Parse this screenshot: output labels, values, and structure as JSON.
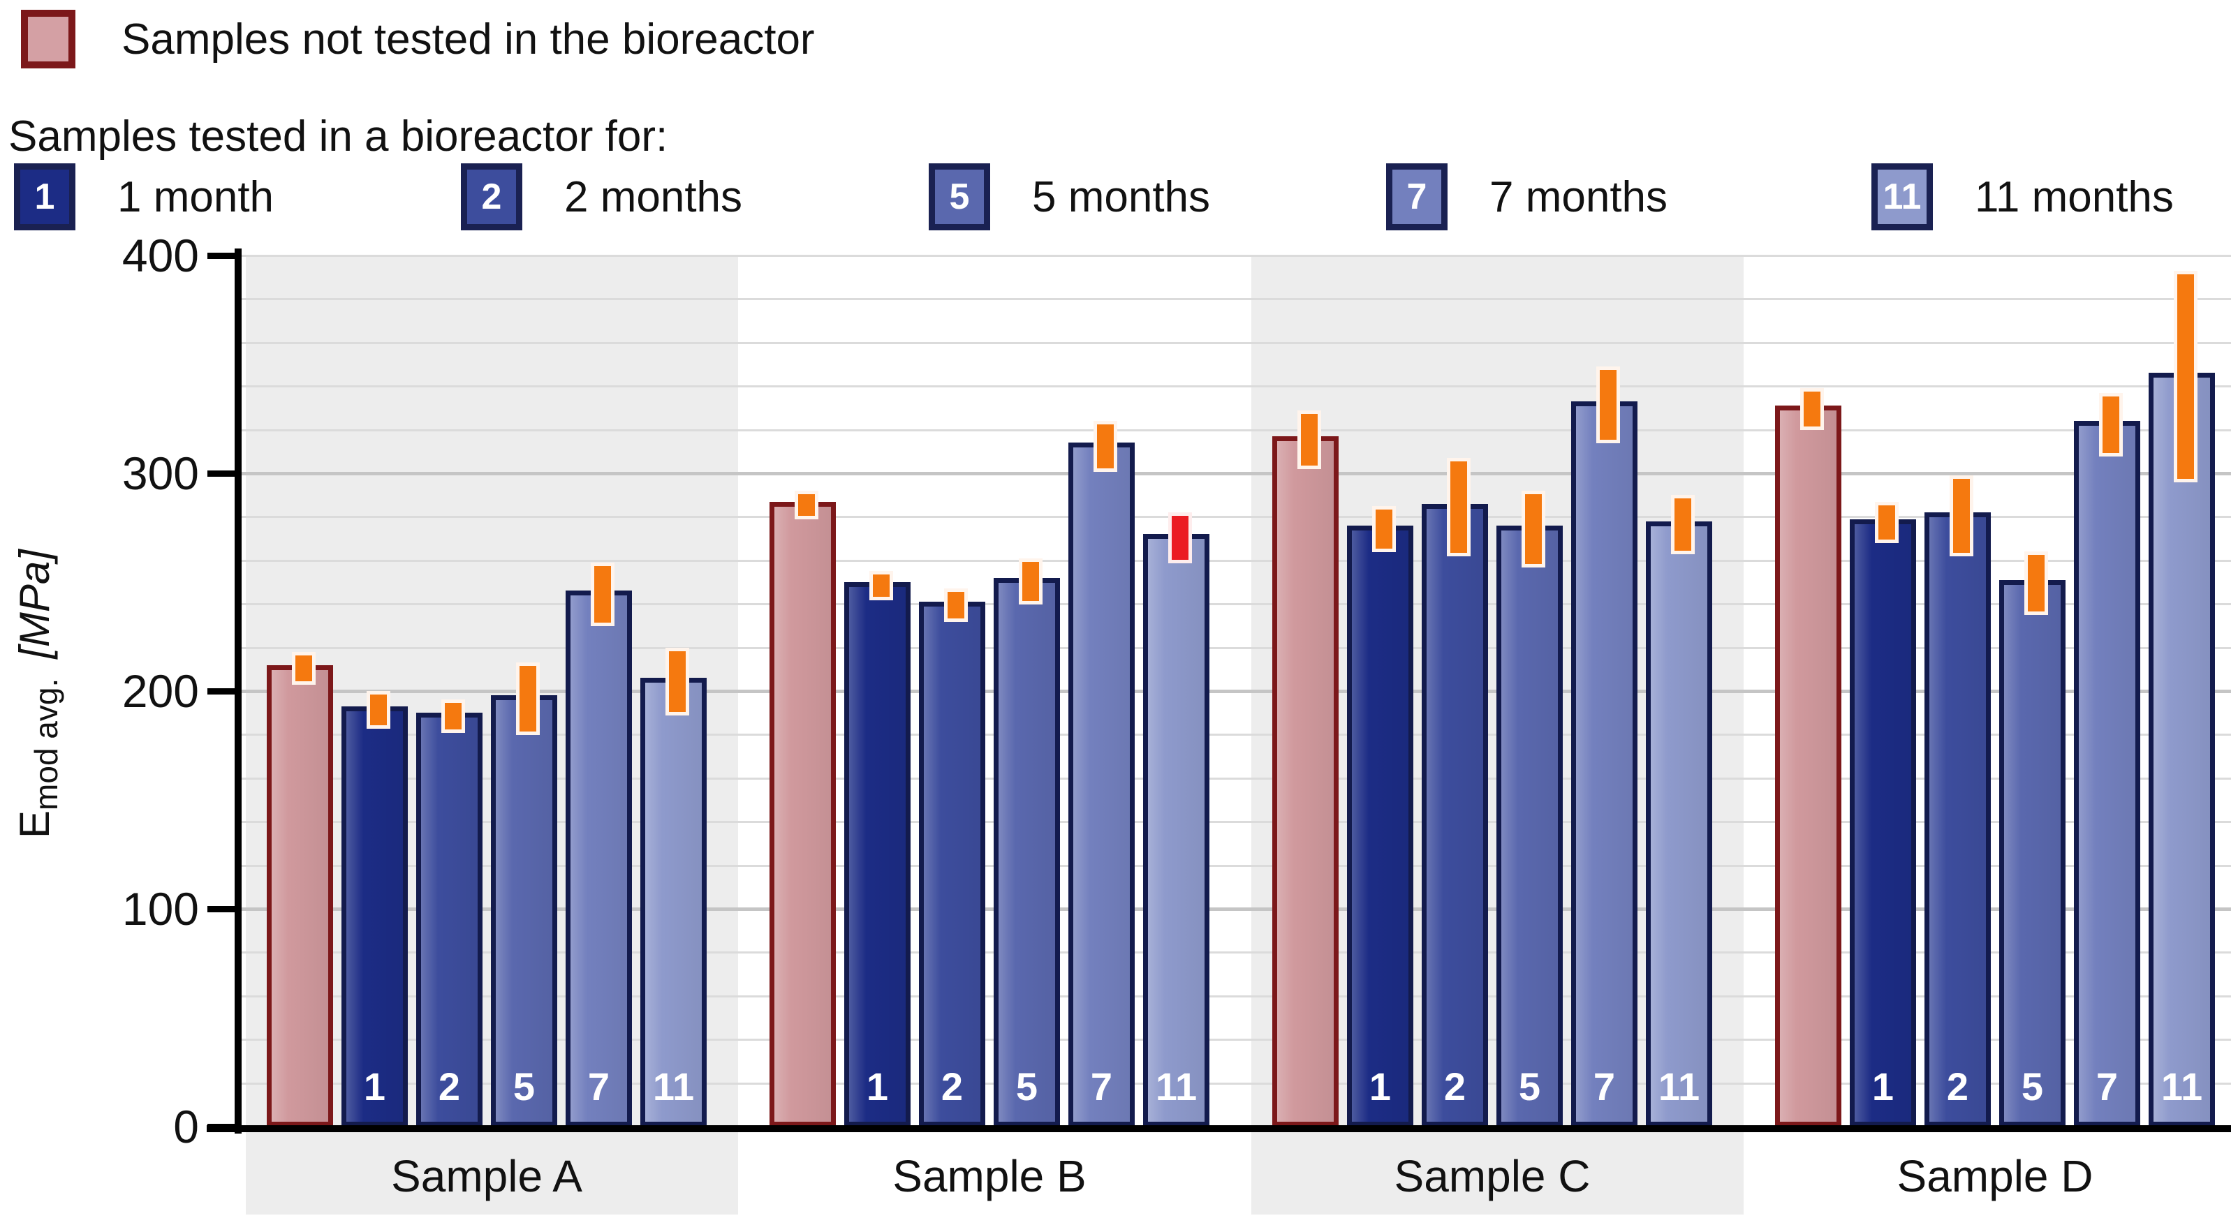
{
  "legend": {
    "not_tested_label": "Samples not tested in the bioreactor",
    "tested_heading": "Samples tested in a bioreactor for:",
    "not_tested_color": "#D4A0A4",
    "not_tested_border": "#7C181A",
    "items": [
      {
        "key": "1",
        "label": "1 month",
        "color": "#1C2C85"
      },
      {
        "key": "2",
        "label": "2 months",
        "color": "#3D4D9D"
      },
      {
        "key": "5",
        "label": "5 months",
        "color": "#5A68AE"
      },
      {
        "key": "7",
        "label": "7 months",
        "color": "#7380BE"
      },
      {
        "key": "11",
        "label": "11 months",
        "color": "#8E9ACC"
      }
    ]
  },
  "axis": {
    "ylabel_main": "E",
    "ylabel_sub": "mod avg.",
    "ylabel_unit": "[MPa]"
  },
  "chart_data": {
    "type": "bar",
    "title": "",
    "ylabel": "Emod avg. [MPa]",
    "ylim": [
      0,
      400
    ],
    "yticks": [
      0,
      100,
      200,
      300,
      400
    ],
    "minor_grid_step": 20,
    "grid": true,
    "categories": [
      "Sample A",
      "Sample B",
      "Sample C",
      "Sample D"
    ],
    "shaded_categories": [
      "Sample A",
      "Sample C"
    ],
    "bar_group_labels": [
      "",
      "1",
      "2",
      "5",
      "7",
      "11"
    ],
    "series": [
      {
        "name": "Samples not tested in the bioreactor",
        "color": "#D0999D",
        "border": "#7C181A",
        "values": [
          212,
          287,
          317,
          331
        ],
        "errors": [
          6,
          5,
          12,
          8
        ]
      },
      {
        "name": "1 month",
        "color": "#1C2C85",
        "border": "#131B4D",
        "values": [
          193,
          250,
          276,
          279
        ],
        "errors": [
          7,
          5,
          9,
          8
        ]
      },
      {
        "name": "2 months",
        "color": "#3D4D9D",
        "border": "#131B4D",
        "values": [
          190,
          241,
          286,
          282
        ],
        "errors": [
          6,
          6,
          21,
          17
        ]
      },
      {
        "name": "5 months",
        "color": "#5A68AE",
        "border": "#131B4D",
        "values": [
          198,
          252,
          276,
          251
        ],
        "errors": [
          15,
          9,
          16,
          13
        ]
      },
      {
        "name": "7 months",
        "color": "#7380BE",
        "border": "#131B4D",
        "values": [
          246,
          314,
          333,
          324
        ],
        "errors": [
          13,
          10,
          16,
          13
        ]
      },
      {
        "name": "11 months",
        "color": "#8E9ACC",
        "border": "#131B4D",
        "values": [
          206,
          272,
          278,
          346
        ],
        "errors": [
          14,
          10,
          12,
          47
        ]
      }
    ],
    "error_bar_color": "#F5790F",
    "special_error_bar": {
      "series": "11 months",
      "category": "Sample B",
      "color": "#EB1C23"
    },
    "legend_position": "top-left"
  }
}
